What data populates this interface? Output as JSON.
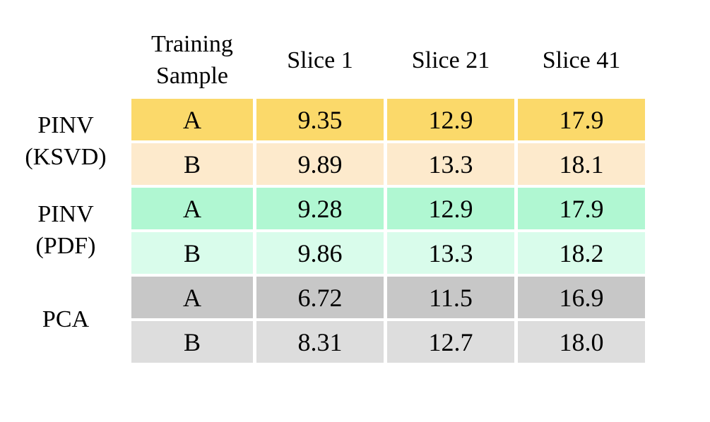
{
  "table": {
    "headers": [
      "Training Sample",
      "Slice 1",
      "Slice 21",
      "Slice 41"
    ],
    "groups": [
      {
        "label": "PINV (KSVD)",
        "rows": [
          {
            "sample": "A",
            "values": [
              "9.35",
              "12.9",
              "17.9"
            ]
          },
          {
            "sample": "B",
            "values": [
              "9.89",
              "13.3",
              "18.1"
            ]
          }
        ]
      },
      {
        "label": "PINV (PDF)",
        "rows": [
          {
            "sample": "A",
            "values": [
              "9.28",
              "12.9",
              "17.9"
            ]
          },
          {
            "sample": "B",
            "values": [
              "9.86",
              "13.3",
              "18.2"
            ]
          }
        ]
      },
      {
        "label": "PCA",
        "rows": [
          {
            "sample": "A",
            "values": [
              "6.72",
              "11.5",
              "16.9"
            ]
          },
          {
            "sample": "B",
            "values": [
              "8.31",
              "12.7",
              "18.0"
            ]
          }
        ]
      }
    ]
  },
  "colors": {
    "gold": "#FBD96A",
    "gold_light": "#FDEACC",
    "mint": "#B0F7D2",
    "mint_light": "#D9FCEB",
    "gray": "#C7C7C7",
    "gray_light": "#DDDDDD",
    "text": "#000000",
    "background": "#FFFFFF"
  },
  "chart_data": {
    "type": "table",
    "columns": [
      "Training Sample",
      "Slice 1",
      "Slice 21",
      "Slice 41"
    ],
    "row_groups": [
      {
        "label": "PINV (KSVD)",
        "rows": [
          {
            "training_sample": "A",
            "slice_1": 9.35,
            "slice_21": 12.9,
            "slice_41": 17.9
          },
          {
            "training_sample": "B",
            "slice_1": 9.89,
            "slice_21": 13.3,
            "slice_41": 18.1
          }
        ]
      },
      {
        "label": "PINV (PDF)",
        "rows": [
          {
            "training_sample": "A",
            "slice_1": 9.28,
            "slice_21": 12.9,
            "slice_41": 17.9
          },
          {
            "training_sample": "B",
            "slice_1": 9.86,
            "slice_21": 13.3,
            "slice_41": 18.2
          }
        ]
      },
      {
        "label": "PCA",
        "rows": [
          {
            "training_sample": "A",
            "slice_1": 6.72,
            "slice_21": 11.5,
            "slice_41": 16.9
          },
          {
            "training_sample": "B",
            "slice_1": 8.31,
            "slice_21": 12.7,
            "slice_41": 18.0
          }
        ]
      }
    ],
    "legend_position": "none",
    "grid": false
  }
}
